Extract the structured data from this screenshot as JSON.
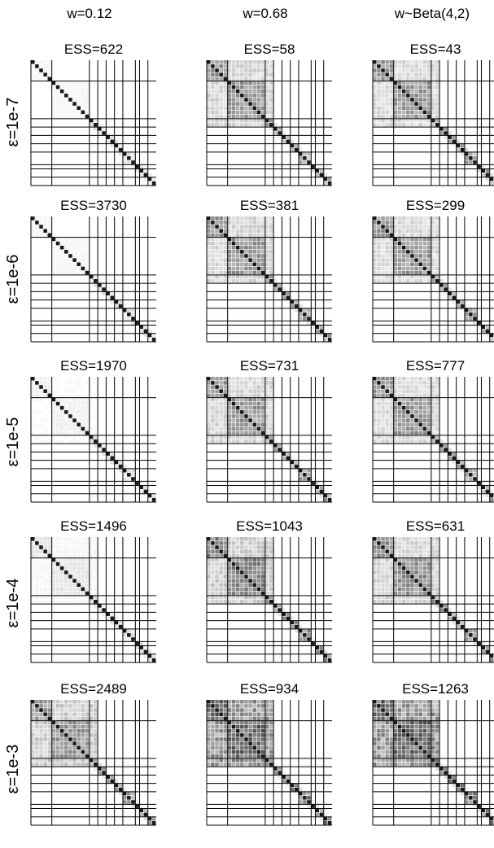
{
  "figure": {
    "column_headers": [
      "w=0.12",
      "w=0.68",
      "w~Beta(4,2)"
    ],
    "row_labels": [
      "ε=1e-7",
      "ε=1e-6",
      "ε=1e-5",
      "ε=1e-4",
      "ε=1e-3"
    ]
  },
  "chart_data": {
    "type": "heatmap",
    "description_grid": "5 rows x 3 columns of block-structured correlation matrices",
    "matrix_size": 30,
    "block_boundaries": [
      5,
      14,
      16,
      18,
      20,
      22,
      25,
      26,
      28
    ],
    "colormap": "greys",
    "value_range": [
      0,
      1
    ],
    "grid": true,
    "panels": [
      {
        "row": 0,
        "col": 0,
        "title": "ESS=622",
        "ess": 622
      },
      {
        "row": 0,
        "col": 1,
        "title": "ESS=58",
        "ess": 58
      },
      {
        "row": 0,
        "col": 2,
        "title": "ESS=43",
        "ess": 43
      },
      {
        "row": 1,
        "col": 0,
        "title": "ESS=3730",
        "ess": 3730
      },
      {
        "row": 1,
        "col": 1,
        "title": "ESS=381",
        "ess": 381
      },
      {
        "row": 1,
        "col": 2,
        "title": "ESS=299",
        "ess": 299
      },
      {
        "row": 2,
        "col": 0,
        "title": "ESS=1970",
        "ess": 1970
      },
      {
        "row": 2,
        "col": 1,
        "title": "ESS=731",
        "ess": 731
      },
      {
        "row": 2,
        "col": 2,
        "title": "ESS=777",
        "ess": 777
      },
      {
        "row": 3,
        "col": 0,
        "title": "ESS=1496",
        "ess": 1496
      },
      {
        "row": 3,
        "col": 1,
        "title": "ESS=1043",
        "ess": 1043
      },
      {
        "row": 3,
        "col": 2,
        "title": "ESS=631",
        "ess": 631
      },
      {
        "row": 4,
        "col": 0,
        "title": "ESS=2489",
        "ess": 2489
      },
      {
        "row": 4,
        "col": 1,
        "title": "ESS=934",
        "ess": 934
      },
      {
        "row": 4,
        "col": 2,
        "title": "ESS=1263",
        "ess": 1263
      }
    ],
    "block_intensity": [
      [
        0.05,
        0.55,
        0.55
      ],
      [
        0.05,
        0.55,
        0.55
      ],
      [
        0.08,
        0.55,
        0.55
      ],
      [
        0.14,
        0.65,
        0.6
      ],
      [
        0.55,
        0.8,
        0.8
      ]
    ],
    "offdiag_intensity": [
      [
        0.02,
        0.25,
        0.22
      ],
      [
        0.02,
        0.25,
        0.22
      ],
      [
        0.03,
        0.25,
        0.22
      ],
      [
        0.05,
        0.3,
        0.25
      ],
      [
        0.3,
        0.6,
        0.6
      ]
    ]
  }
}
